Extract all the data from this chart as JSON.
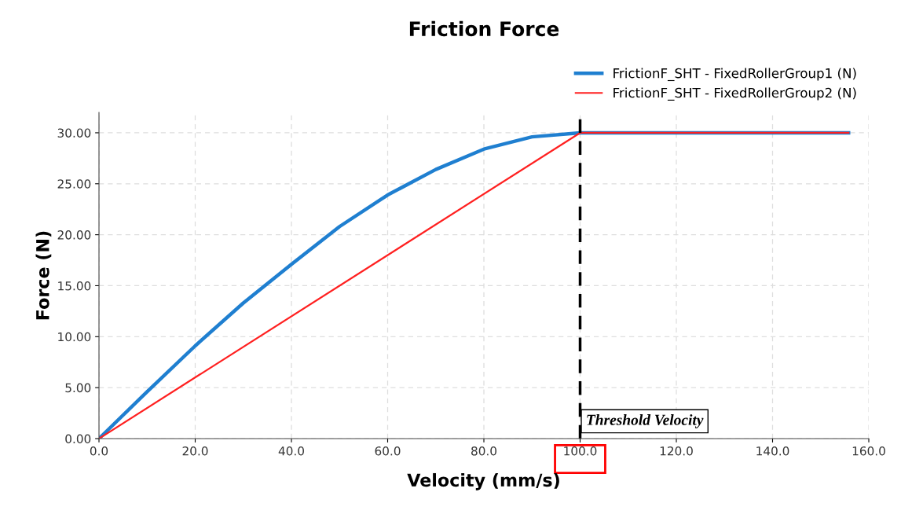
{
  "chart_data": {
    "type": "line",
    "title": "Friction Force",
    "xlabel": "Velocity (mm/s)",
    "ylabel": "Force (N)",
    "series": [
      {
        "name": "FrictionF_SHT - FixedRollerGroup1 (N)",
        "color": "#1f7fd0",
        "x": [
          0,
          10,
          20,
          30,
          40,
          50,
          60,
          70,
          80,
          90,
          100,
          155.8
        ],
        "values": [
          0,
          4.6,
          9.1,
          13.3,
          17.1,
          20.8,
          23.9,
          26.4,
          28.4,
          29.6,
          30,
          30
        ]
      },
      {
        "name": "FrictionF_SHT - FixedRollerGroup2 (N)",
        "color": "#ff2020",
        "x": [
          0,
          100,
          155.8
        ],
        "values": [
          0,
          30,
          30
        ]
      }
    ],
    "xlim": [
      0,
      160
    ],
    "xticks": [
      {
        "value": 0,
        "label": "0.0"
      },
      {
        "value": 20,
        "label": "20.0"
      },
      {
        "value": 40,
        "label": "40.0"
      },
      {
        "value": 60,
        "label": "60.0"
      },
      {
        "value": 80,
        "label": "80.0"
      },
      {
        "value": 100,
        "label": "100.0"
      },
      {
        "value": 120,
        "label": "120.0"
      },
      {
        "value": 140,
        "label": "140.0"
      },
      {
        "value": 160,
        "label": "160.0"
      }
    ],
    "ylim": [
      0,
      32
    ],
    "yticks": [
      {
        "value": 0,
        "label": "0.00"
      },
      {
        "value": 5,
        "label": "5.00"
      },
      {
        "value": 10,
        "label": "10.00"
      },
      {
        "value": 15,
        "label": "15.00"
      },
      {
        "value": 20,
        "label": "20.00"
      },
      {
        "value": 25,
        "label": "25.00"
      },
      {
        "value": 30,
        "label": "30.00"
      }
    ],
    "ref_lines": [
      {
        "axis": "x",
        "value": 100,
        "label": "Threshold Velocity",
        "color": "#000000",
        "line_style": "dashed"
      }
    ],
    "grid": true,
    "legend": "top right",
    "marker": "none",
    "line_style": "solid"
  }
}
